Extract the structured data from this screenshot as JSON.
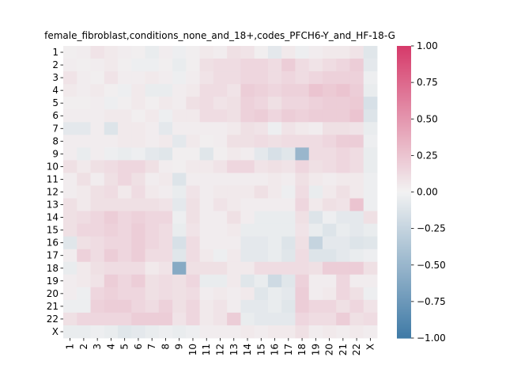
{
  "chart_data": {
    "type": "heatmap",
    "title": "female_fibroblast,conditions_none_and_18+,codes_PFCH6-Y_and_HF-18-G",
    "row_labels": [
      "1",
      "2",
      "3",
      "4",
      "5",
      "6",
      "7",
      "8",
      "9",
      "10",
      "11",
      "12",
      "13",
      "14",
      "15",
      "16",
      "17",
      "18",
      "19",
      "20",
      "21",
      "22",
      "X"
    ],
    "col_labels": [
      "1",
      "2",
      "3",
      "4",
      "5",
      "6",
      "7",
      "8",
      "9",
      "10",
      "11",
      "12",
      "13",
      "14",
      "15",
      "16",
      "17",
      "18",
      "19",
      "20",
      "21",
      "22",
      "X"
    ],
    "values": [
      [
        0.02,
        0.03,
        0.08,
        0.05,
        0.03,
        0.02,
        -0.05,
        0.03,
        -0.03,
        0.02,
        0.05,
        0.03,
        0.1,
        0.08,
        0.02,
        -0.08,
        0.05,
        -0.03,
        0.03,
        0.05,
        0.05,
        0.08,
        -0.1
      ],
      [
        0.03,
        0.02,
        0.03,
        0.05,
        0.02,
        -0.03,
        -0.03,
        0.02,
        -0.05,
        0.02,
        0.1,
        0.12,
        0.12,
        0.15,
        0.15,
        0.12,
        0.2,
        0.12,
        0.08,
        0.12,
        0.15,
        0.2,
        -0.08
      ],
      [
        0.08,
        0.03,
        0.02,
        0.08,
        0.03,
        0.03,
        0.05,
        0.03,
        -0.03,
        0.03,
        0.08,
        0.12,
        0.12,
        0.15,
        0.15,
        0.12,
        0.15,
        0.12,
        0.15,
        0.18,
        0.18,
        0.18,
        -0.03
      ],
      [
        0.05,
        0.03,
        0.05,
        0.02,
        -0.03,
        0.05,
        -0.05,
        -0.05,
        0.03,
        0.05,
        0.12,
        0.12,
        0.08,
        0.2,
        0.18,
        0.15,
        0.18,
        0.18,
        0.25,
        0.22,
        0.25,
        0.2,
        -0.05
      ],
      [
        0.02,
        0.02,
        0.03,
        -0.03,
        0.02,
        0.05,
        0.02,
        0.05,
        0.03,
        0.1,
        0.12,
        0.08,
        0.1,
        0.18,
        0.15,
        0.1,
        0.15,
        0.15,
        0.18,
        0.2,
        0.2,
        0.22,
        -0.15
      ],
      [
        0.03,
        0.03,
        0.03,
        0.05,
        0.05,
        0.02,
        0.05,
        -0.03,
        0.05,
        0.05,
        0.12,
        0.12,
        0.1,
        0.18,
        0.2,
        0.15,
        0.2,
        0.18,
        0.2,
        0.2,
        0.2,
        0.25,
        -0.12
      ],
      [
        -0.08,
        -0.08,
        0.03,
        -0.12,
        0.05,
        0.05,
        0.03,
        -0.08,
        0.03,
        0.03,
        0.03,
        0.03,
        0.05,
        0.1,
        0.08,
        -0.03,
        0.08,
        0.05,
        0.03,
        0.1,
        0.1,
        0.08,
        -0.05
      ],
      [
        0.03,
        0.03,
        0.03,
        0.03,
        0.05,
        0.05,
        0.03,
        0.05,
        -0.08,
        0.05,
        0.02,
        0.03,
        0.1,
        0.1,
        0.12,
        0.1,
        0.12,
        0.12,
        0.12,
        0.15,
        0.2,
        0.2,
        -0.03
      ],
      [
        0.03,
        -0.05,
        0.03,
        -0.03,
        -0.05,
        -0.03,
        -0.08,
        -0.1,
        0.02,
        0.02,
        -0.1,
        0.02,
        0.05,
        0.03,
        -0.08,
        -0.15,
        -0.1,
        -0.5,
        0.12,
        0.12,
        0.15,
        0.12,
        -0.05
      ],
      [
        0.1,
        0.05,
        0.1,
        0.12,
        0.15,
        0.15,
        0.1,
        0.03,
        0.02,
        0.05,
        0.05,
        0.08,
        0.15,
        0.15,
        0.08,
        0.1,
        0.08,
        0.15,
        0.1,
        0.12,
        0.15,
        0.12,
        -0.05
      ],
      [
        0.03,
        0.1,
        0.03,
        0.1,
        0.15,
        0.1,
        0.03,
        0.05,
        -0.12,
        0.03,
        0.03,
        0.03,
        0.03,
        0.03,
        0.03,
        0.05,
        0.03,
        0.1,
        0.05,
        0.03,
        0.05,
        0.05,
        -0.03
      ],
      [
        0.03,
        0.05,
        0.1,
        0.12,
        0.05,
        0.12,
        0.05,
        0.03,
        -0.05,
        0.08,
        0.03,
        0.05,
        0.05,
        0.05,
        0.1,
        0.05,
        -0.03,
        0.12,
        -0.05,
        0.05,
        0.1,
        0.05,
        -0.03
      ],
      [
        0.1,
        0.05,
        0.1,
        0.1,
        0.1,
        0.1,
        0.1,
        0.08,
        -0.08,
        0.1,
        0.03,
        0.08,
        0.05,
        0.03,
        0.03,
        0.03,
        0.03,
        0.15,
        0.05,
        0.1,
        0.08,
        0.25,
        -0.03
      ],
      [
        0.1,
        0.12,
        0.15,
        0.2,
        0.15,
        0.18,
        0.15,
        0.15,
        -0.03,
        0.1,
        0.03,
        0.03,
        0.1,
        0.03,
        -0.05,
        -0.05,
        -0.05,
        0.1,
        -0.12,
        -0.03,
        -0.08,
        -0.08,
        0.1
      ],
      [
        0.1,
        0.15,
        0.15,
        0.18,
        0.15,
        0.2,
        0.15,
        0.12,
        -0.05,
        0.08,
        0.03,
        0.03,
        0.05,
        -0.05,
        -0.05,
        -0.05,
        -0.05,
        0.08,
        -0.05,
        -0.12,
        -0.05,
        -0.08,
        -0.05
      ],
      [
        -0.1,
        0.1,
        0.12,
        0.15,
        0.15,
        0.2,
        0.15,
        0.12,
        -0.15,
        0.12,
        0.03,
        0.03,
        0.03,
        -0.08,
        -0.08,
        -0.05,
        -0.12,
        0.1,
        -0.25,
        -0.08,
        -0.08,
        -0.12,
        -0.1
      ],
      [
        0.03,
        0.18,
        0.12,
        0.2,
        0.15,
        0.2,
        0.12,
        0.12,
        -0.1,
        0.12,
        0.05,
        -0.03,
        0.05,
        -0.08,
        -0.08,
        -0.05,
        -0.1,
        0.12,
        -0.12,
        -0.12,
        -0.08,
        -0.05,
        -0.03
      ],
      [
        -0.05,
        0.05,
        0.1,
        0.12,
        0.12,
        0.12,
        0.05,
        0.08,
        -0.6,
        0.1,
        0.1,
        0.1,
        0.05,
        0.05,
        0.12,
        0.12,
        0.12,
        0.12,
        0.1,
        0.2,
        0.2,
        0.2,
        0.1
      ],
      [
        0.03,
        0.05,
        0.08,
        0.2,
        0.15,
        0.2,
        0.1,
        0.12,
        0.1,
        0.15,
        -0.05,
        -0.05,
        0.05,
        -0.1,
        -0.05,
        -0.2,
        -0.1,
        0.18,
        0.03,
        0.03,
        0.15,
        0.03,
        0.03
      ],
      [
        0.03,
        -0.03,
        0.15,
        0.18,
        0.15,
        0.15,
        0.1,
        0.12,
        0.1,
        0.12,
        0.03,
        0.05,
        0.03,
        0.05,
        -0.1,
        -0.05,
        -0.08,
        0.2,
        0.03,
        0.05,
        0.15,
        0.1,
        -0.03
      ],
      [
        -0.03,
        -0.03,
        0.18,
        0.2,
        0.2,
        0.15,
        0.12,
        0.18,
        0.1,
        0.15,
        0.05,
        0.08,
        0.03,
        -0.08,
        -0.08,
        -0.05,
        -0.1,
        0.2,
        0.15,
        0.15,
        0.1,
        0.15,
        0.08
      ],
      [
        0.1,
        0.15,
        0.15,
        0.15,
        0.15,
        0.2,
        0.2,
        0.2,
        0.08,
        0.15,
        0.05,
        0.08,
        0.2,
        -0.05,
        -0.08,
        -0.08,
        -0.08,
        0.15,
        0.12,
        0.12,
        0.2,
        0.1,
        0.12
      ],
      [
        -0.05,
        -0.05,
        -0.03,
        -0.05,
        -0.1,
        -0.08,
        -0.05,
        -0.03,
        -0.05,
        -0.03,
        0.03,
        0.03,
        0.03,
        0.05,
        0.03,
        0.05,
        0.05,
        0.1,
        0.03,
        0.05,
        0.03,
        0.05,
        0.03
      ]
    ],
    "vmin": -1.0,
    "vmax": 1.0,
    "colorbar_ticks": [
      "1.00",
      "0.75",
      "0.50",
      "0.25",
      "0.00",
      "−0.25",
      "−0.50",
      "−0.75",
      "−1.00"
    ],
    "colorbar_tick_values": [
      1.0,
      0.75,
      0.5,
      0.25,
      0.0,
      -0.25,
      -0.5,
      -0.75,
      -1.0
    ],
    "colormap": {
      "negative": "#3f7aa6",
      "center": "#f2f2f2",
      "positive": "#d63a6a"
    },
    "grid": false,
    "legend": "colorbar-right"
  }
}
